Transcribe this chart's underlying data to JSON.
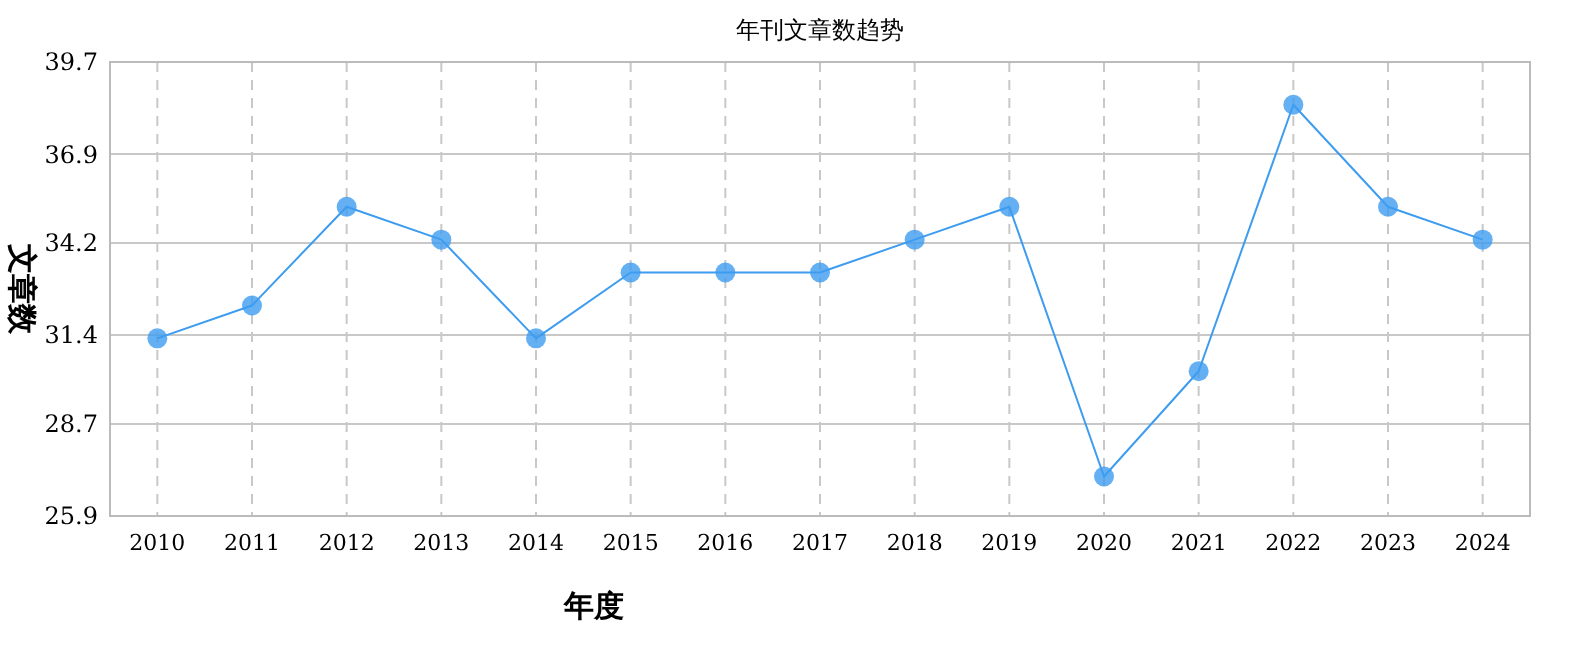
{
  "chart_data": {
    "type": "line",
    "title": "年刊文章数趋势",
    "xlabel": "年度",
    "ylabel": "文章数",
    "categories": [
      "2010",
      "2011",
      "2012",
      "2013",
      "2014",
      "2015",
      "2016",
      "2017",
      "2018",
      "2019",
      "2020",
      "2021",
      "2022",
      "2023",
      "2024"
    ],
    "series": [
      {
        "color": "#3d9cf0",
        "values": [
          31.3,
          32.3,
          35.3,
          34.3,
          31.3,
          33.3,
          33.3,
          33.3,
          34.3,
          35.3,
          27.1,
          30.3,
          38.4,
          35.3,
          34.3
        ]
      }
    ],
    "ylim": [
      25.9,
      39.7
    ],
    "yticks": [
      25.9,
      28.7,
      31.4,
      34.2,
      36.9,
      39.7
    ],
    "grid": true,
    "marker": "circle",
    "line_style": "solid"
  }
}
